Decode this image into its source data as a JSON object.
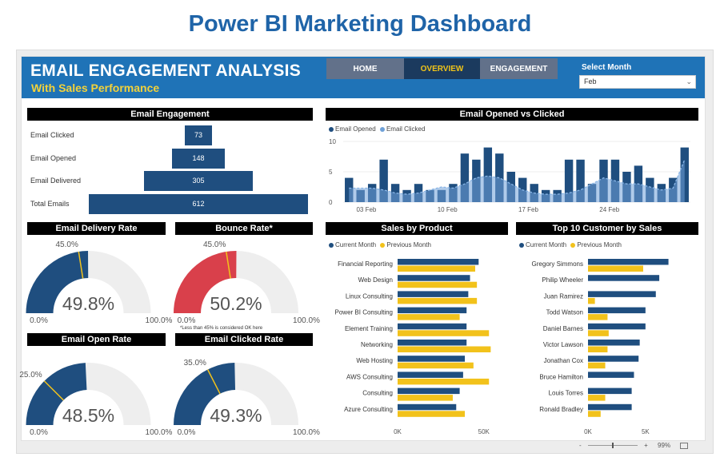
{
  "page_title": "Power BI Marketing Dashboard",
  "header": {
    "title": "EMAIL ENGAGEMENT ANALYSIS",
    "subtitle": "With Sales Performance",
    "nav": [
      "HOME",
      "OVERVIEW",
      "ENGAGEMENT"
    ],
    "active_nav": "OVERVIEW",
    "month_label": "Select Month",
    "month_value": "Feb"
  },
  "funnel": {
    "title": "Email Engagement",
    "rows": [
      {
        "label": "Email Clicked",
        "value": 73
      },
      {
        "label": "Email Opened",
        "value": 148
      },
      {
        "label": "Email Delivered",
        "value": 305
      },
      {
        "label": "Total Emails",
        "value": 612
      }
    ],
    "color": "#1f4e7f"
  },
  "gauges": [
    {
      "title": "Email Delivery Rate",
      "value": 49.8,
      "display": "49.8%",
      "target": 45.0,
      "target_label": "45.0%",
      "min": "0.0%",
      "max": "100.0%",
      "color": "#1f4e7f"
    },
    {
      "title": "Bounce Rate*",
      "value": 50.2,
      "display": "50.2%",
      "target": 45.0,
      "target_label": "45.0%",
      "min": "0.0%",
      "max": "100.0%",
      "color": "#d9404b",
      "note": "*Less than 45% is considered OK here"
    },
    {
      "title": "Email Open Rate",
      "value": 48.5,
      "display": "48.5%",
      "target": 25.0,
      "target_label": "25.0%",
      "min": "0.0%",
      "max": "100.0%",
      "color": "#1f4e7f"
    },
    {
      "title": "Email Clicked Rate",
      "value": 49.3,
      "display": "49.3%",
      "target": 35.0,
      "target_label": "35.0%",
      "min": "0.0%",
      "max": "100.0%",
      "color": "#1f4e7f"
    }
  ],
  "opened_clicked": {
    "title": "Email Opened vs Clicked",
    "legend": [
      "Email Opened",
      "Email Clicked"
    ],
    "colors": {
      "opened": "#1f4e7f",
      "clicked": "#6fa1d8"
    },
    "y_ticks": [
      "10",
      "5",
      "0"
    ],
    "x_ticks": [
      "03 Feb",
      "10 Feb",
      "17 Feb",
      "24 Feb"
    ],
    "chart_data": {
      "type": "bar",
      "ylim": [
        0,
        10
      ],
      "opened": [
        4,
        2,
        3,
        7,
        3,
        2,
        3,
        2,
        2,
        3,
        8,
        7,
        9,
        8,
        5,
        4,
        3,
        2,
        2,
        7,
        7,
        3,
        7,
        7,
        5,
        6,
        4,
        3,
        4,
        9
      ],
      "clicked": [
        2.3,
        2.3,
        2.3,
        2.0,
        1.5,
        1.3,
        1.5,
        2.0,
        2.5,
        2.3,
        3.0,
        4.0,
        4.3,
        4.0,
        3.0,
        2.0,
        1.5,
        1.3,
        1.3,
        1.5,
        2.0,
        3.0,
        4.0,
        3.5,
        3.0,
        3.0,
        2.5,
        2.0,
        2.3,
        7.0
      ]
    }
  },
  "sales_product": {
    "title": "Sales by Product",
    "legend": [
      "Current Month",
      "Previous Month"
    ],
    "colors": {
      "current": "#1f4e7f",
      "previous": "#f2c21b"
    },
    "x_ticks": [
      "0K",
      "50K"
    ],
    "chart_data": {
      "type": "bar",
      "orientation": "horizontal",
      "categories": [
        "Financial Reporting",
        "Web Design",
        "Linux Consulting",
        "Power BI Consulting",
        "Element Training",
        "Networking",
        "Web Hosting",
        "AWS Consulting",
        "Consulting",
        "Azure Consulting"
      ],
      "current": [
        47,
        42,
        41,
        40,
        40,
        40,
        39,
        38,
        36,
        34
      ],
      "previous": [
        45,
        46,
        46,
        36,
        53,
        54,
        44,
        53,
        32,
        39
      ]
    }
  },
  "top_customers": {
    "title": "Top 10 Customer by Sales",
    "legend": [
      "Current Month",
      "Previous Month"
    ],
    "colors": {
      "current": "#1f4e7f",
      "previous": "#f2c21b"
    },
    "x_ticks": [
      "0K",
      "5K"
    ],
    "chart_data": {
      "type": "bar",
      "orientation": "horizontal",
      "categories": [
        "Gregory Simmons",
        "Philip Wheeler",
        "Juan Ramirez",
        "Todd Watson",
        "Daniel Barnes",
        "Victor Lawson",
        "Jonathan Cox",
        "Bruce Hamilton",
        "Louis Torres",
        "Ronald Bradley"
      ],
      "current": [
        7.0,
        6.2,
        5.9,
        5.0,
        5.0,
        4.5,
        4.4,
        4.0,
        3.8,
        3.8
      ],
      "previous": [
        4.8,
        0,
        0.6,
        1.7,
        1.8,
        1.7,
        1.5,
        0,
        1.5,
        1.1
      ]
    }
  },
  "status": {
    "zoom": "99%",
    "minus": "-",
    "plus": "+"
  }
}
